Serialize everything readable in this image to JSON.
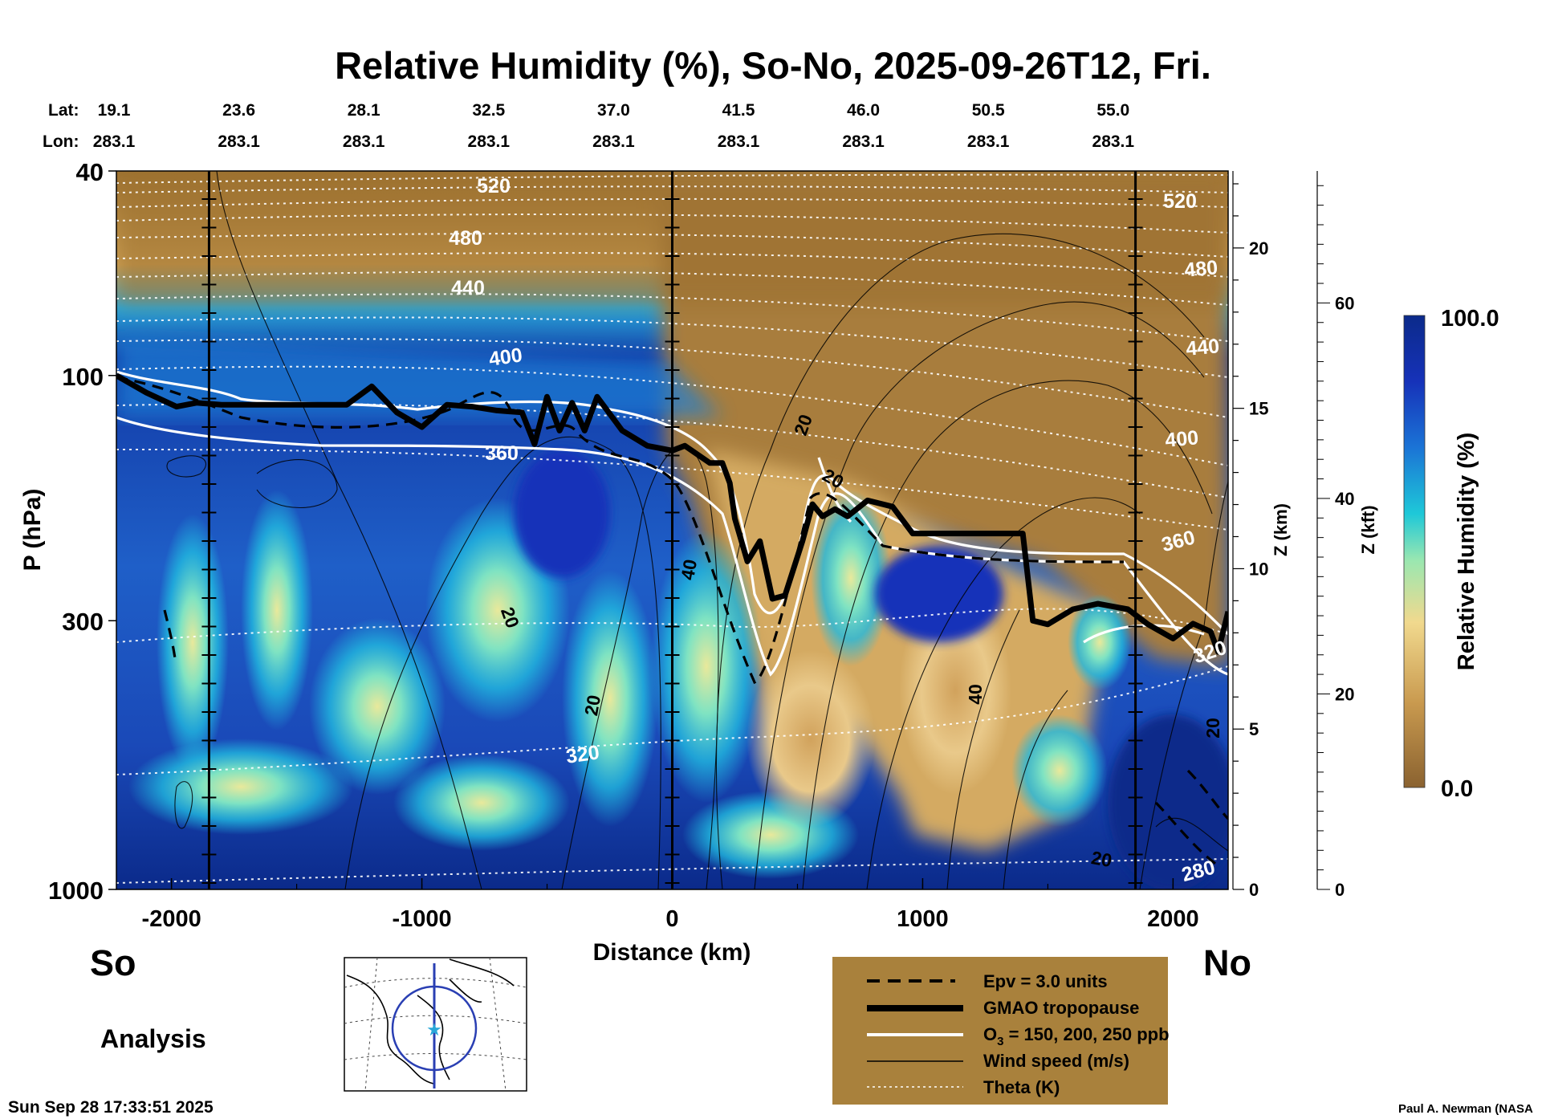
{
  "colors": {
    "humid_high": "#0b2a8a",
    "humid_mid": "#1ec8d8",
    "dry": "#8a6230",
    "legend_bg": "#a9813c",
    "trop_line": "#000000",
    "ozone_line": "#ffffff",
    "theta_line": "#ffffff",
    "wind_line": "#000000"
  },
  "chart_data": {
    "type": "heatmap",
    "title": "Relative Humidity (%), So-No, 2025-09-26T12, Fri.",
    "xlabel": "Distance (km)",
    "ylabel": "P (hPa)",
    "y2label": "Z (km)",
    "y3label": "Z (kft)",
    "xlim": [
      -2220,
      2220
    ],
    "ylim_hpa": [
      1000,
      40
    ],
    "x_ticks": [
      -2000,
      -1000,
      0,
      1000,
      2000
    ],
    "x_tick_labels": [
      "-2000",
      "-1000",
      "0",
      "1000",
      "2000"
    ],
    "y_ticks_hpa": [
      1000,
      300,
      100,
      40
    ],
    "y_tick_labels": [
      "1000",
      "300",
      "100",
      "40"
    ],
    "z_km_ticks": [
      0,
      5,
      10,
      15,
      20
    ],
    "z_km_labels": [
      "0",
      "5",
      "10",
      "15",
      "20"
    ],
    "z_kft_ticks": [
      0,
      20,
      40,
      60
    ],
    "z_kft_labels": [
      "0",
      "20",
      "40",
      "60"
    ],
    "lat_label": "Lat:",
    "lon_label": "Lon:",
    "stations": [
      {
        "lat": "19.1",
        "lon": "283.1"
      },
      {
        "lat": "23.6",
        "lon": "283.1"
      },
      {
        "lat": "28.1",
        "lon": "283.1"
      },
      {
        "lat": "32.5",
        "lon": "283.1"
      },
      {
        "lat": "37.0",
        "lon": "283.1"
      },
      {
        "lat": "41.5",
        "lon": "283.1"
      },
      {
        "lat": "46.0",
        "lon": "283.1"
      },
      {
        "lat": "50.5",
        "lon": "283.1"
      },
      {
        "lat": "55.0",
        "lon": "283.1"
      }
    ],
    "vertical_markers_km": [
      -1850,
      0,
      1850
    ],
    "colorbar": {
      "label": "Relative Humidity (%)",
      "max_label": "100.0",
      "min_label": "0.0",
      "range": [
        0,
        100
      ]
    },
    "theta_labels": [
      "520",
      "480",
      "440",
      "400",
      "360",
      "320",
      "520",
      "480",
      "440",
      "400",
      "360",
      "320",
      "280"
    ],
    "wind_labels": [
      "20",
      "20",
      "40",
      "20",
      "20",
      "40",
      "20",
      "20"
    ],
    "tropopause_km_hpa": [
      [
        -2220,
        100
      ],
      [
        -2100,
        108
      ],
      [
        -1980,
        115
      ],
      [
        -1900,
        113
      ],
      [
        -1800,
        114
      ],
      [
        -1700,
        114
      ],
      [
        -1500,
        114
      ],
      [
        -1300,
        114
      ],
      [
        -1200,
        105
      ],
      [
        -1100,
        118
      ],
      [
        -1000,
        126
      ],
      [
        -900,
        114
      ],
      [
        -800,
        115
      ],
      [
        -700,
        117
      ],
      [
        -600,
        118
      ],
      [
        -550,
        136
      ],
      [
        -500,
        110
      ],
      [
        -450,
        128
      ],
      [
        -400,
        113
      ],
      [
        -350,
        128
      ],
      [
        -300,
        110
      ],
      [
        -200,
        128
      ],
      [
        -100,
        137
      ],
      [
        0,
        140
      ],
      [
        50,
        137
      ],
      [
        150,
        148
      ],
      [
        200,
        148
      ],
      [
        230,
        162
      ],
      [
        250,
        190
      ],
      [
        300,
        230
      ],
      [
        350,
        210
      ],
      [
        400,
        272
      ],
      [
        450,
        268
      ],
      [
        520,
        210
      ],
      [
        560,
        178
      ],
      [
        600,
        188
      ],
      [
        650,
        182
      ],
      [
        700,
        188
      ],
      [
        780,
        175
      ],
      [
        880,
        180
      ],
      [
        960,
        203
      ],
      [
        1100,
        203
      ],
      [
        1300,
        203
      ],
      [
        1400,
        203
      ],
      [
        1440,
        300
      ],
      [
        1500,
        305
      ],
      [
        1600,
        285
      ],
      [
        1700,
        278
      ],
      [
        1820,
        285
      ],
      [
        1900,
        305
      ],
      [
        2000,
        325
      ],
      [
        2080,
        304
      ],
      [
        2150,
        315
      ],
      [
        2180,
        345
      ],
      [
        2220,
        288
      ]
    ],
    "series": [
      {
        "name": "Epv = 3.0 units",
        "style": "dashed"
      },
      {
        "name": "GMAO tropopause",
        "style": "thick"
      },
      {
        "name": "O3 = 150, 200, 250 ppb",
        "style": "white"
      },
      {
        "name": "Wind speed (m/s)",
        "style": "thin"
      },
      {
        "name": "Theta (K)",
        "style": "dotted"
      }
    ]
  },
  "footer": {
    "left_top": "So",
    "right_top": "No",
    "analysis": "Analysis",
    "timestamp": "Sun Sep 28 17:33:51 2025",
    "credit": "Paul A. Newman (NASA"
  },
  "legend": {
    "epv": "Epv = 3.0 units",
    "tropopause": "GMAO tropopause",
    "ozone_prefix": "O",
    "ozone_sub": "3",
    "ozone_suffix": " = 150, 200, 250 ppb",
    "wind": "Wind speed (m/s)",
    "theta": "Theta (K)"
  }
}
